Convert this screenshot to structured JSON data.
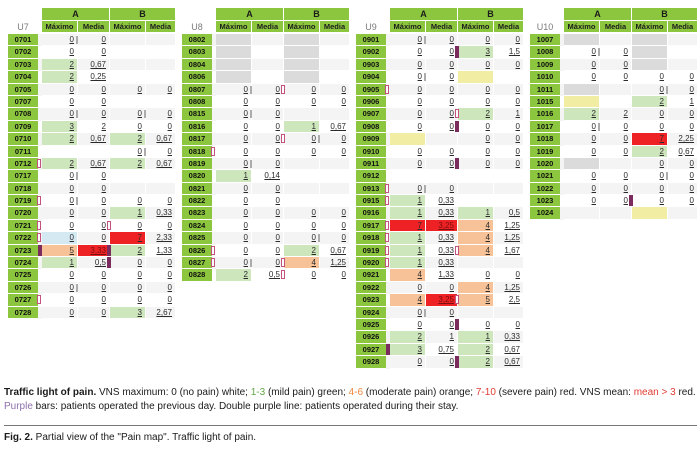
{
  "figure": {
    "headers": {
      "group_a": "A",
      "group_b": "B",
      "max_label": "Máximo",
      "mean_label": "Media"
    },
    "colors": {
      "header_green": "#8CC63E",
      "mild_green": "#CDE6BC",
      "moderate_orange": "#F8C298",
      "severe_red": "#EE2224",
      "pending_yellow": "#F1EEA4",
      "info_blue": "#D5E9F2",
      "nodata_gray": "#DBDBDB",
      "tick_gray": "#ACACAC",
      "purple_bar": "#7C2B5E",
      "operated_box_border": "#C4527E",
      "band_gray": "#F4F4F4",
      "caption_green": "#61A844",
      "caption_orange": "#F0863C",
      "caption_red": "#E03C31",
      "caption_purple": "#8E6FAD"
    },
    "units": [
      {
        "label": "U7",
        "rows": [
          {
            "id": "0701",
            "cells": [
              "0|bar",
              "0",
              "",
              ""
            ]
          },
          {
            "id": "0702",
            "cells": [
              "0",
              "0",
              "",
              ""
            ]
          },
          {
            "id": "0703",
            "cells": [
              "2|g",
              "0,67",
              "",
              ""
            ]
          },
          {
            "id": "0704",
            "cells": [
              "2|g",
              "0,25",
              "",
              ""
            ]
          },
          {
            "id": "0705",
            "cells": [
              "0",
              "0",
              "0",
              "0"
            ]
          },
          {
            "id": "0707",
            "cells": [
              "0",
              "0",
              "",
              ""
            ]
          },
          {
            "id": "0708",
            "cells": [
              "0|bar",
              "0",
              "0|bar",
              "0"
            ]
          },
          {
            "id": "0709",
            "cells": [
              "3|g",
              "2",
              "0",
              "0"
            ]
          },
          {
            "id": "0710",
            "cells": [
              "2|g",
              "0,67",
              "2|g",
              "0,67"
            ]
          },
          {
            "id": "0711",
            "cells": [
              "",
              "",
              "0|bar",
              "0"
            ]
          },
          {
            "id": "0712",
            "cells": [
              "2|g",
              "0,67",
              "2|g",
              "0,67"
            ],
            "mA": "box"
          },
          {
            "id": "0717",
            "cells": [
              "0|bar",
              "0",
              "",
              ""
            ]
          },
          {
            "id": "0718",
            "cells": [
              "0",
              "0",
              "",
              ""
            ]
          },
          {
            "id": "0719",
            "cells": [
              "0|bar",
              "0",
              "0",
              "0"
            ],
            "mA": "box"
          },
          {
            "id": "0720",
            "cells": [
              "0",
              "0",
              "1|g",
              "0,33"
            ]
          },
          {
            "id": "0721",
            "cells": [
              "0",
              "0",
              "0",
              "0"
            ],
            "mA": "box",
            "mB": "box"
          },
          {
            "id": "0722",
            "cells": [
              "0|bl",
              "0",
              "7|r",
              "2,33"
            ],
            "mA": "box"
          },
          {
            "id": "0723",
            "cells": [
              "5|o",
              "3,33|r|rt",
              "2|g",
              "1,33"
            ],
            "mA": "bar",
            "mB": "bar"
          },
          {
            "id": "0724",
            "cells": [
              "1|g",
              "0,5",
              "0",
              "0"
            ],
            "mB": "bar"
          },
          {
            "id": "0725",
            "cells": [
              "0",
              "0",
              "0",
              "0"
            ]
          },
          {
            "id": "0726",
            "cells": [
              "0|bar",
              "0",
              "0",
              "0"
            ]
          },
          {
            "id": "0727",
            "cells": [
              "0",
              "0",
              "0",
              "0"
            ],
            "mA": "box"
          },
          {
            "id": "0728",
            "cells": [
              "0",
              "0",
              "3|g",
              "2,67"
            ]
          }
        ]
      },
      {
        "label": "U8",
        "rows": [
          {
            "id": "0802",
            "cells": [
              "|gr",
              "",
              "|gr",
              ""
            ]
          },
          {
            "id": "0803",
            "cells": [
              "|gr",
              "",
              "|gr",
              ""
            ]
          },
          {
            "id": "0804",
            "cells": [
              "|gr",
              "",
              "|gr",
              ""
            ]
          },
          {
            "id": "0806",
            "cells": [
              "|gr",
              "",
              "|gr",
              ""
            ]
          },
          {
            "id": "0807",
            "cells": [
              "0|bar",
              "0",
              "0",
              "0"
            ],
            "mB": "box"
          },
          {
            "id": "0808",
            "cells": [
              "0",
              "0",
              "0",
              "0"
            ]
          },
          {
            "id": "0815",
            "cells": [
              "0|bar",
              "0",
              "",
              ""
            ]
          },
          {
            "id": "0816",
            "cells": [
              "0",
              "0",
              "1|g",
              "0,67"
            ]
          },
          {
            "id": "0817",
            "cells": [
              "0",
              "0",
              "0|bar",
              "0"
            ],
            "mB": "box"
          },
          {
            "id": "0818",
            "cells": [
              "0",
              "0",
              "0",
              "0"
            ],
            "mA": "box"
          },
          {
            "id": "0819",
            "cells": [
              "0|bar",
              "0",
              "",
              ""
            ]
          },
          {
            "id": "0820",
            "cells": [
              "1|g",
              "0,14",
              "",
              ""
            ]
          },
          {
            "id": "0821",
            "cells": [
              "0",
              "0",
              "",
              ""
            ]
          },
          {
            "id": "0822",
            "cells": [
              "0",
              "0",
              "",
              ""
            ]
          },
          {
            "id": "0823",
            "cells": [
              "0",
              "0",
              "0",
              "0"
            ]
          },
          {
            "id": "0824",
            "cells": [
              "0",
              "0",
              "0",
              "0"
            ]
          },
          {
            "id": "0825",
            "cells": [
              "0",
              "0",
              "0|bar",
              "0"
            ]
          },
          {
            "id": "0826",
            "cells": [
              "0",
              "0",
              "2|g",
              "0,67"
            ],
            "mA": "box"
          },
          {
            "id": "0827",
            "cells": [
              "0|bar",
              "0",
              "4|o",
              "1,25"
            ],
            "mA": "box",
            "mB": "box"
          },
          {
            "id": "0828",
            "cells": [
              "2|g",
              "0,5",
              "0",
              "0"
            ],
            "mB": "box"
          }
        ]
      },
      {
        "label": "U9",
        "rows": [
          {
            "id": "0901",
            "cells": [
              "0|bar",
              "0",
              "0",
              "0"
            ]
          },
          {
            "id": "0902",
            "cells": [
              "0",
              "0",
              "3|g",
              "1,5"
            ],
            "mB": "bar"
          },
          {
            "id": "0903",
            "cells": [
              "0",
              "0",
              "0",
              "0"
            ]
          },
          {
            "id": "0904",
            "cells": [
              "0|bar",
              "0",
              "|y",
              ""
            ]
          },
          {
            "id": "0905",
            "cells": [
              "0",
              "0",
              "0",
              "0"
            ],
            "mA": "box"
          },
          {
            "id": "0906",
            "cells": [
              "0",
              "0",
              "0",
              "0"
            ]
          },
          {
            "id": "0907",
            "cells": [
              "0",
              "0",
              "2|g",
              "1"
            ],
            "mB": "box"
          },
          {
            "id": "0908",
            "cells": [
              "0",
              "0",
              "0",
              "0"
            ],
            "mB": "bar"
          },
          {
            "id": "0909",
            "cells": [
              "|y",
              "",
              "0",
              "0"
            ]
          },
          {
            "id": "0910",
            "cells": [
              "0",
              "0",
              "0",
              "0"
            ]
          },
          {
            "id": "0911",
            "cells": [
              "0",
              "0",
              "0",
              "0"
            ],
            "mB": "bar"
          },
          {
            "id": "0912",
            "cells": [
              "",
              "",
              "",
              ""
            ]
          },
          {
            "id": "0913",
            "cells": [
              "0|bar",
              "0",
              "",
              ""
            ],
            "mA": "box"
          },
          {
            "id": "0915",
            "cells": [
              "1|g",
              "0,33",
              "",
              ""
            ],
            "mA": "box"
          },
          {
            "id": "0916",
            "cells": [
              "1|g",
              "0,33",
              "1|g",
              "0,5"
            ]
          },
          {
            "id": "0917",
            "cells": [
              "7|r",
              "3,25|r|rt",
              "4|o",
              "1,25"
            ],
            "mA": "box"
          },
          {
            "id": "0918",
            "cells": [
              "1|g",
              "0,33",
              "4|o",
              "1,25"
            ],
            "mA": "box"
          },
          {
            "id": "0919",
            "cells": [
              "1|g",
              "0,33",
              "4|o",
              "1,67"
            ],
            "mA": "box",
            "mB": "box"
          },
          {
            "id": "0920",
            "cells": [
              "1|g",
              "0,33",
              "",
              ""
            ],
            "mA": "box"
          },
          {
            "id": "0921",
            "cells": [
              "4|o",
              "1,33",
              "0",
              "0"
            ]
          },
          {
            "id": "0922",
            "cells": [
              "0",
              "0",
              "4|o",
              "1,25"
            ]
          },
          {
            "id": "0923",
            "cells": [
              "4|o",
              "3,25|r|rt",
              "5|o",
              "2,5"
            ],
            "mB": "box"
          },
          {
            "id": "0924",
            "cells": [
              "0|bar",
              "0",
              "",
              ""
            ]
          },
          {
            "id": "0925",
            "cells": [
              "0",
              "0",
              "0",
              "0"
            ],
            "mB": "bar"
          },
          {
            "id": "0926",
            "cells": [
              "2|g",
              "1",
              "1|g",
              "0,33"
            ]
          },
          {
            "id": "0927",
            "cells": [
              "3|g",
              "0,75",
              "2|g",
              "0,67"
            ],
            "mA": "bar"
          },
          {
            "id": "0928",
            "cells": [
              "0",
              "0",
              "2|g",
              "0,67"
            ],
            "mB": "bar"
          }
        ]
      },
      {
        "label": "U10",
        "rows": [
          {
            "id": "1007",
            "cells": [
              "|gr",
              "",
              "|gr",
              ""
            ]
          },
          {
            "id": "1008",
            "cells": [
              "0|bar",
              "0",
              "|gr",
              ""
            ]
          },
          {
            "id": "1009",
            "cells": [
              "0",
              "0",
              "|gr",
              ""
            ]
          },
          {
            "id": "1010",
            "cells": [
              "0",
              "0",
              "0",
              "0"
            ]
          },
          {
            "id": "1011",
            "cells": [
              "|gr",
              "",
              "0|bar",
              "0"
            ]
          },
          {
            "id": "1015",
            "cells": [
              "|y",
              "",
              "2|g",
              "1"
            ]
          },
          {
            "id": "1016",
            "cells": [
              "2|g",
              "2",
              "0",
              "0"
            ]
          },
          {
            "id": "1017",
            "cells": [
              "0|bar",
              "0",
              "0",
              "0"
            ]
          },
          {
            "id": "1018",
            "cells": [
              "0",
              "0",
              "7|r",
              "2,25"
            ]
          },
          {
            "id": "1019",
            "cells": [
              "0",
              "0",
              "2|g",
              "0,67"
            ]
          },
          {
            "id": "1020",
            "cells": [
              "|gr",
              "",
              "0",
              "0"
            ]
          },
          {
            "id": "1021",
            "cells": [
              "0",
              "0",
              "0|bar",
              "0"
            ]
          },
          {
            "id": "1022",
            "cells": [
              "0",
              "0",
              "0",
              "0"
            ]
          },
          {
            "id": "1023",
            "cells": [
              "0",
              "0",
              "0",
              "0"
            ],
            "mB": "bar"
          },
          {
            "id": "1024",
            "cells": [
              "",
              "",
              "|y",
              ""
            ]
          }
        ]
      }
    ],
    "legend_segments": [
      {
        "t": "Traffic light of pain.",
        "b": true
      },
      {
        "t": " VNS maximum: 0 (no pain) white; "
      },
      {
        "t": "1-3",
        "c": "caption_green"
      },
      {
        "t": " (mild pain) green; "
      },
      {
        "t": "4-6",
        "c": "caption_orange"
      },
      {
        "t": " (moderate pain) orange; "
      },
      {
        "t": "7-10",
        "c": "caption_red"
      },
      {
        "t": " (severe pain) red. VNS mean: "
      },
      {
        "t": "mean > 3",
        "c": "caption_red"
      },
      {
        "t": " red. "
      },
      {
        "t": "Purple",
        "c": "caption_purple"
      },
      {
        "t": " bars: patients operated the previous day. Double purple line: patients operated during their stay."
      }
    ],
    "fig_caption_segments": [
      {
        "t": "Fig. 2.",
        "b": true
      },
      {
        "t": " Partial view of the \"Pain map\". Traffic light of pain."
      }
    ]
  }
}
